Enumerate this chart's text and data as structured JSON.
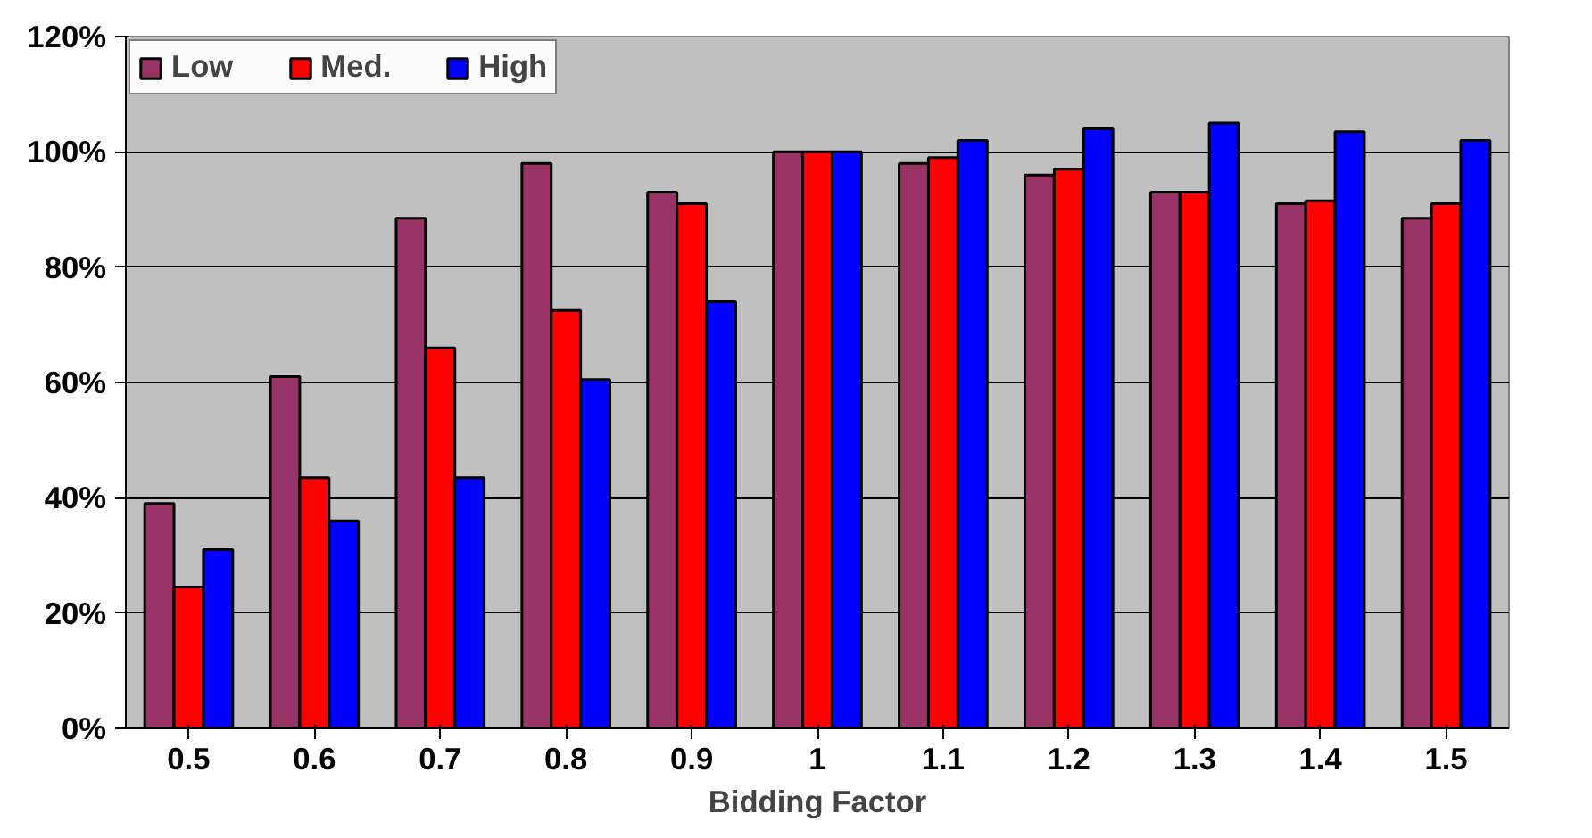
{
  "chart_data": {
    "type": "bar",
    "xlabel": "Bidding Factor",
    "categories": [
      "0.5",
      "0.6",
      "0.7",
      "0.8",
      "0.9",
      "1",
      "1.1",
      "1.2",
      "1.3",
      "1.4",
      "1.5"
    ],
    "series": [
      {
        "name": "Low",
        "color": "#993366",
        "values": [
          39,
          61,
          88.5,
          98,
          93,
          100,
          98,
          96,
          93,
          91,
          88.5
        ]
      },
      {
        "name": "Med.",
        "color": "#ff0000",
        "values": [
          24.5,
          43.5,
          66,
          72.5,
          91,
          100,
          99,
          97,
          93,
          91.5,
          91
        ]
      },
      {
        "name": "High",
        "color": "#0000ff",
        "values": [
          31,
          36,
          43.5,
          60.5,
          74,
          100,
          102,
          104,
          105,
          103.5,
          102
        ]
      }
    ],
    "ylim": [
      0,
      120
    ],
    "yticks": [
      {
        "value": 0,
        "label": "0%"
      },
      {
        "value": 20,
        "label": "20%"
      },
      {
        "value": 40,
        "label": "40%"
      },
      {
        "value": 60,
        "label": "60%"
      },
      {
        "value": 80,
        "label": "80%"
      },
      {
        "value": 100,
        "label": "100%"
      },
      {
        "value": 120,
        "label": "120%"
      }
    ],
    "grid": "y",
    "legend": "top left"
  }
}
